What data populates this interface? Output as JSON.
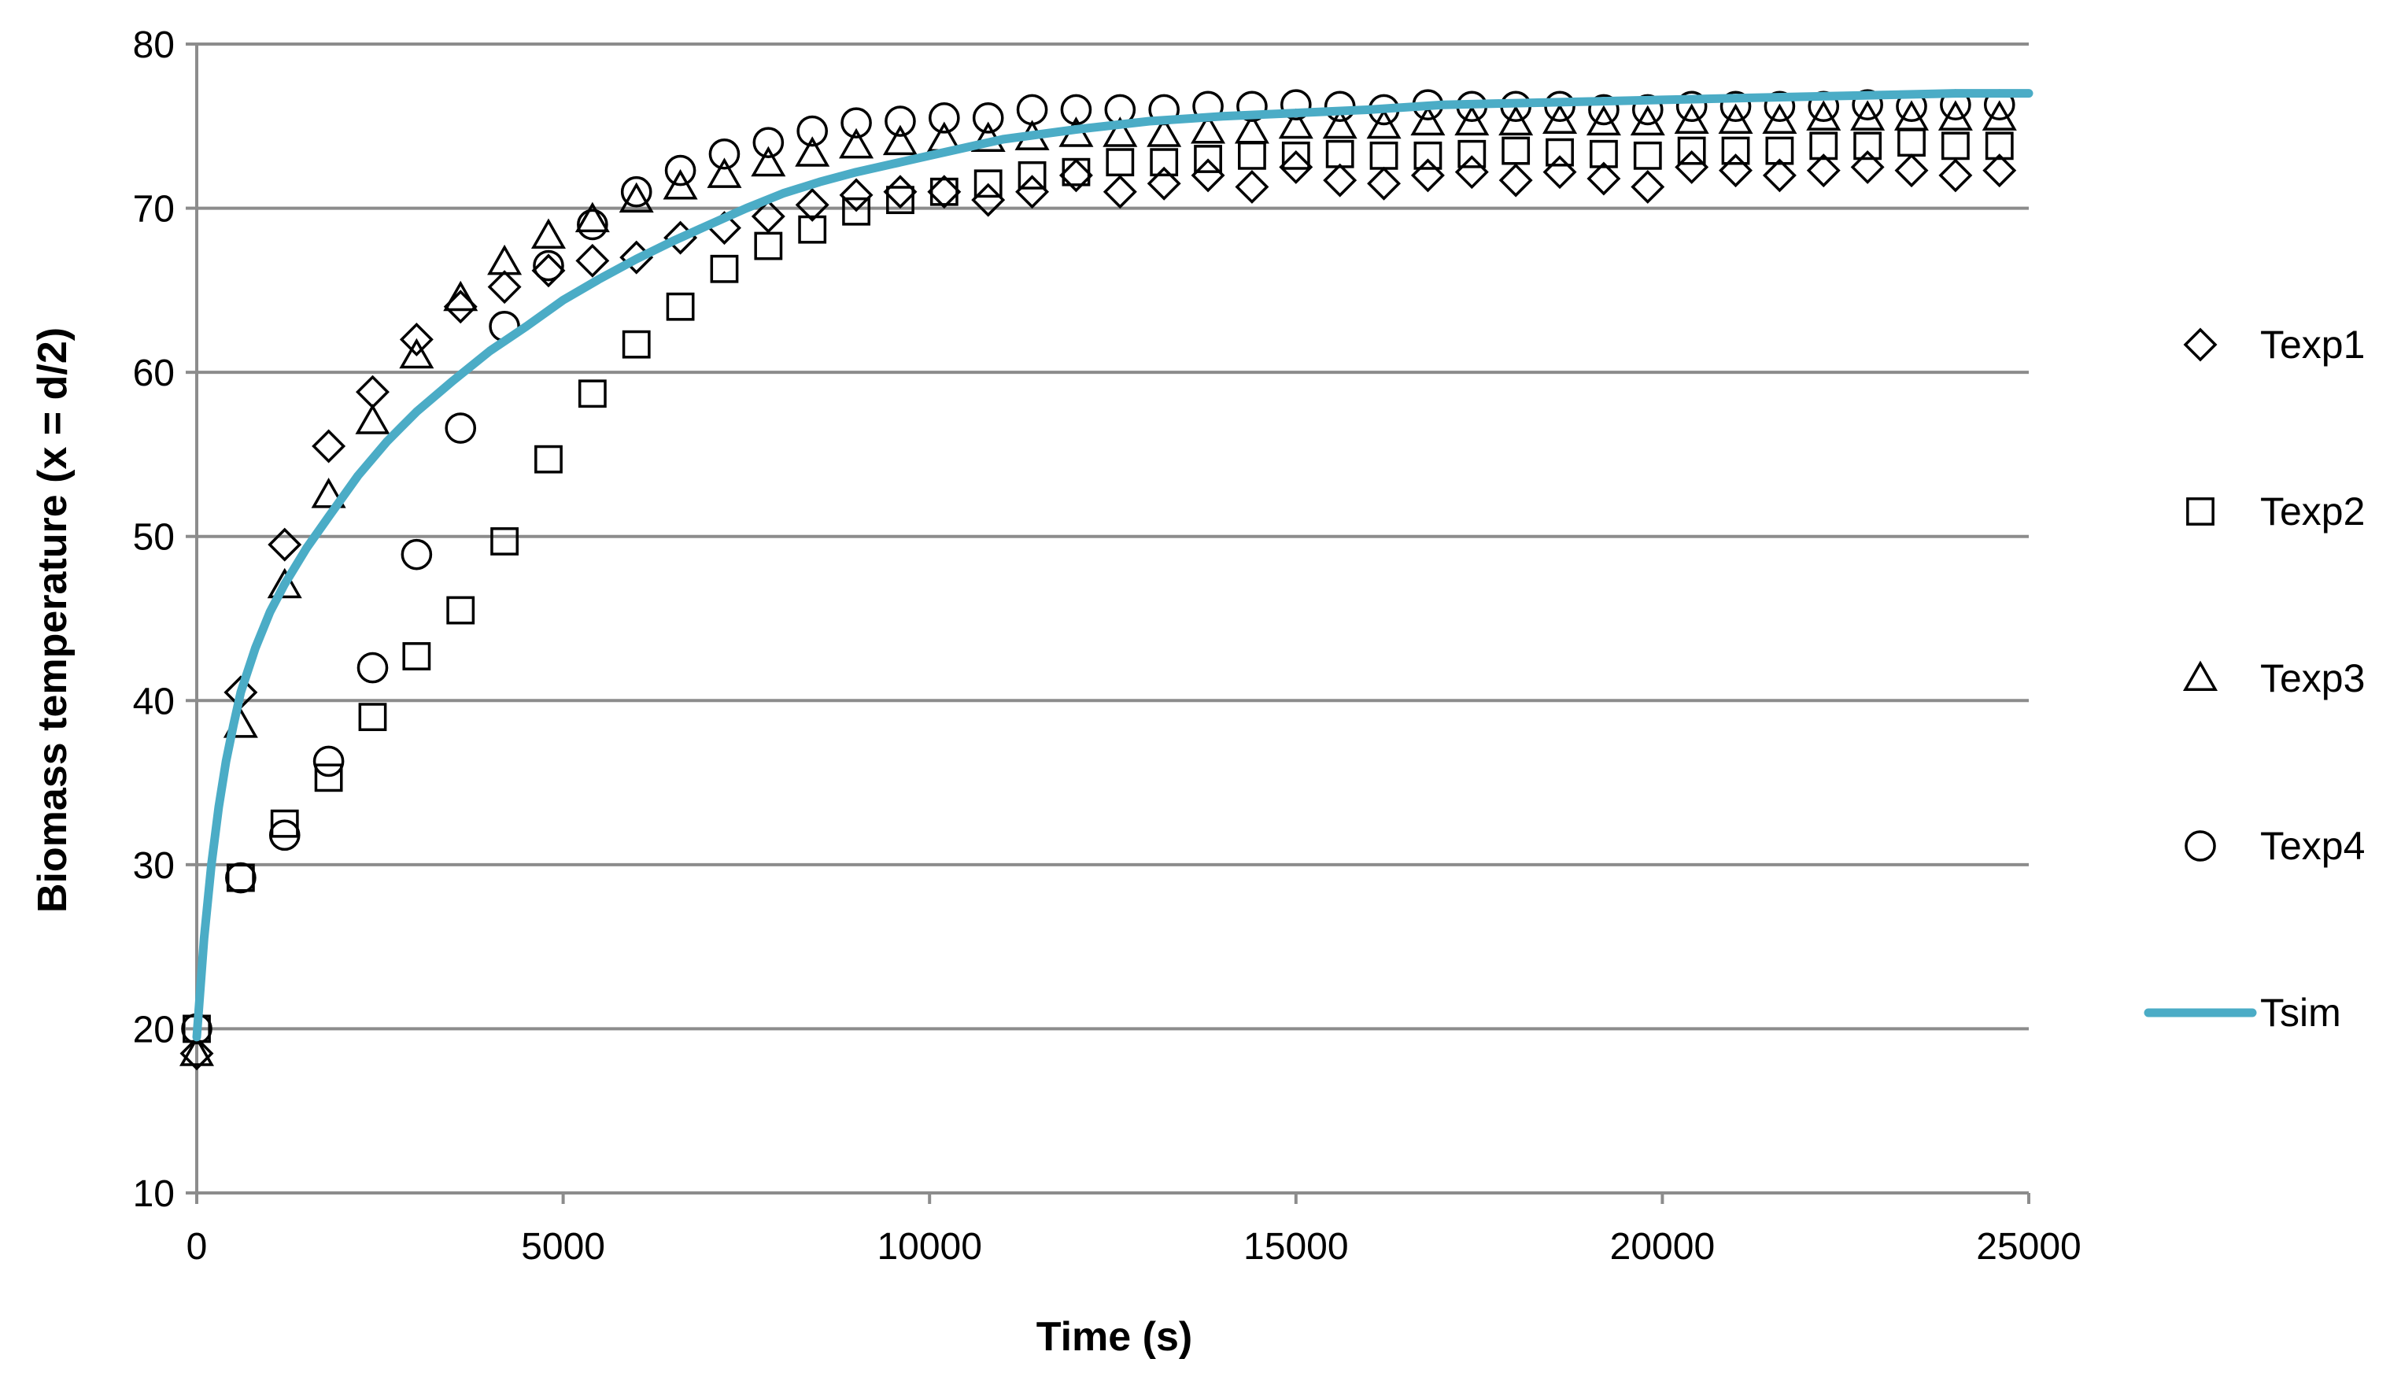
{
  "chart_data": {
    "type": "scatter",
    "title": "",
    "xlabel": "Time (s)",
    "ylabel": "Biomass temperature (x = d/2)",
    "xlim": [
      0,
      25000
    ],
    "ylim": [
      10,
      80
    ],
    "xticks": [
      0,
      5000,
      10000,
      15000,
      20000,
      25000
    ],
    "yticks": [
      10,
      20,
      30,
      40,
      50,
      60,
      70,
      80
    ],
    "xtick_labels": [
      "0",
      "5000",
      "10000",
      "15000",
      "20000",
      "25000"
    ],
    "ytick_labels": [
      "10",
      "20",
      "30",
      "40",
      "50",
      "60",
      "70",
      "80"
    ],
    "grid": "horizontal",
    "legend_position": "right",
    "x": [
      0,
      600,
      1200,
      1800,
      2400,
      3000,
      3600,
      4200,
      4800,
      5400,
      6000,
      6600,
      7200,
      7800,
      8400,
      9000,
      9600,
      10200,
      10800,
      11400,
      12000,
      12600,
      13200,
      13800,
      14400,
      15000,
      15600,
      16200,
      16800,
      17400,
      18000,
      18600,
      19200,
      19800,
      20400,
      21000,
      21600,
      22200,
      22800,
      23400,
      24000,
      24600
    ],
    "series": [
      {
        "name": "Texp1",
        "marker": "diamond",
        "color": "#000000",
        "values": [
          18.5,
          40.5,
          49.5,
          55.5,
          58.8,
          62.0,
          64.0,
          65.2,
          66.2,
          66.8,
          67.0,
          68.2,
          68.8,
          69.5,
          70.2,
          70.8,
          71.0,
          71.0,
          70.5,
          71.0,
          72.0,
          71.0,
          71.5,
          72.0,
          71.3,
          72.5,
          71.7,
          71.5,
          72.0,
          72.2,
          71.7,
          72.2,
          71.8,
          71.3,
          72.5,
          72.3,
          72.0,
          72.3,
          72.5,
          72.3,
          72.0,
          72.3
        ]
      },
      {
        "name": "Texp2",
        "marker": "square",
        "color": "#000000",
        "values": [
          20.0,
          29.2,
          32.5,
          35.3,
          39.0,
          42.7,
          45.5,
          49.7,
          54.7,
          58.7,
          61.7,
          64.0,
          66.3,
          67.7,
          68.7,
          69.8,
          70.5,
          71.0,
          71.5,
          72.0,
          72.2,
          72.8,
          72.8,
          73.0,
          73.2,
          73.2,
          73.3,
          73.2,
          73.2,
          73.3,
          73.5,
          73.4,
          73.3,
          73.2,
          73.5,
          73.5,
          73.5,
          73.8,
          73.8,
          74.0,
          73.8,
          73.8
        ]
      },
      {
        "name": "Texp3",
        "marker": "triangle",
        "color": "#000000",
        "values": [
          18.5,
          38.5,
          47.0,
          52.5,
          57.0,
          61.0,
          64.5,
          66.7,
          68.3,
          69.3,
          70.5,
          71.3,
          72.0,
          72.7,
          73.3,
          73.8,
          74.0,
          74.2,
          74.2,
          74.3,
          74.5,
          74.5,
          74.5,
          74.7,
          74.7,
          75.0,
          75.0,
          75.0,
          75.2,
          75.2,
          75.2,
          75.3,
          75.2,
          75.2,
          75.3,
          75.3,
          75.3,
          75.5,
          75.5,
          75.5,
          75.5,
          75.5
        ]
      },
      {
        "name": "Texp4",
        "marker": "circle",
        "color": "#000000",
        "values": [
          20.0,
          29.2,
          31.8,
          36.3,
          42.0,
          48.9,
          56.6,
          62.8,
          66.5,
          69.0,
          71.0,
          72.3,
          73.3,
          74.0,
          74.7,
          75.2,
          75.3,
          75.5,
          75.5,
          76.0,
          76.0,
          76.0,
          76.0,
          76.2,
          76.2,
          76.3,
          76.2,
          76.0,
          76.3,
          76.2,
          76.2,
          76.2,
          76.0,
          76.0,
          76.2,
          76.2,
          76.2,
          76.2,
          76.3,
          76.2,
          76.3,
          76.3
        ]
      },
      {
        "name": "Tsim",
        "marker": "line",
        "color": "#4bacc6",
        "x": [
          0,
          100,
          200,
          300,
          400,
          500,
          600,
          800,
          1000,
          1200,
          1500,
          1800,
          2200,
          2600,
          3000,
          3500,
          4000,
          4500,
          5000,
          5500,
          6000,
          6500,
          7000,
          7500,
          8000,
          8500,
          9000,
          9500,
          10000,
          11000,
          12000,
          13000,
          14000,
          15000,
          16000,
          17000,
          18000,
          19000,
          20000,
          21000,
          22000,
          23000,
          24000,
          25000
        ],
        "values": [
          19.5,
          25.5,
          30.0,
          33.5,
          36.3,
          38.5,
          40.5,
          43.2,
          45.4,
          47.1,
          49.3,
          51.2,
          53.7,
          55.8,
          57.6,
          59.5,
          61.3,
          62.8,
          64.4,
          65.7,
          66.9,
          68.0,
          69.0,
          70.0,
          70.9,
          71.6,
          72.2,
          72.7,
          73.2,
          74.2,
          74.8,
          75.3,
          75.6,
          75.8,
          76.0,
          76.3,
          76.4,
          76.5,
          76.6,
          76.7,
          76.8,
          76.9,
          77.0,
          77.0
        ]
      }
    ]
  }
}
